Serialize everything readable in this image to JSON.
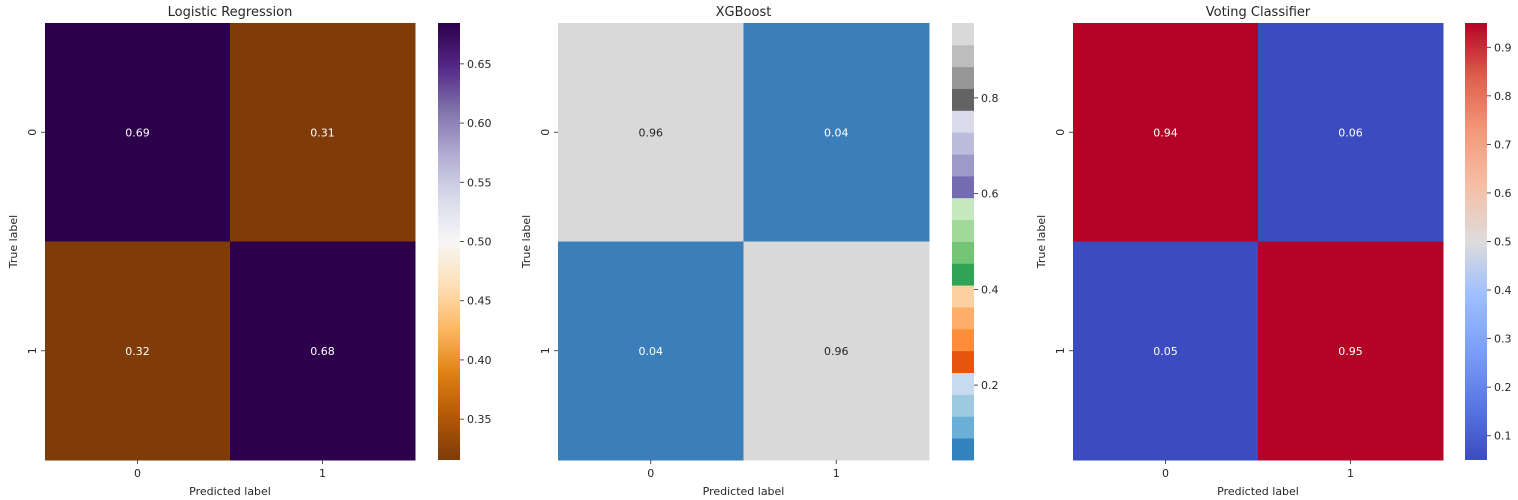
{
  "chart_data": [
    {
      "type": "heatmap",
      "title": "Logistic Regression",
      "xlabel": "Predicted label",
      "ylabel": "True label",
      "x_categories": [
        "0",
        "1"
      ],
      "y_categories": [
        "0",
        "1"
      ],
      "values": [
        [
          0.69,
          0.31
        ],
        [
          0.32,
          0.68
        ]
      ],
      "cell_labels": [
        [
          "0.69",
          "0.31"
        ],
        [
          "0.32",
          "0.68"
        ]
      ],
      "colormap": "PuOr",
      "colorbar": {
        "range": [
          0.3155,
          0.6845
        ],
        "ticks": [
          0.35,
          0.4,
          0.45,
          0.5,
          0.55,
          0.6,
          0.65
        ],
        "tick_labels": [
          "0.35",
          "0.40",
          "0.45",
          "0.50",
          "0.55",
          "0.60",
          "0.65"
        ]
      },
      "cell_colors": [
        [
          "#2d004b",
          "#7f3b08"
        ],
        [
          "#7f3b08",
          "#2d004b"
        ]
      ],
      "cell_text_colors": [
        [
          "#ffffff",
          "#ffffff"
        ],
        [
          "#ffffff",
          "#ffffff"
        ]
      ]
    },
    {
      "type": "heatmap",
      "title": "XGBoost",
      "xlabel": "Predicted label",
      "ylabel": "True label",
      "x_categories": [
        "0",
        "1"
      ],
      "y_categories": [
        "0",
        "1"
      ],
      "values": [
        [
          0.96,
          0.04
        ],
        [
          0.04,
          0.96
        ]
      ],
      "cell_labels": [
        [
          "0.96",
          "0.04"
        ],
        [
          "0.04",
          "0.96"
        ]
      ],
      "colormap": "tab20c",
      "colorbar": {
        "range": [
          0.0435,
          0.9565
        ],
        "ticks": [
          0.2,
          0.4,
          0.6,
          0.8
        ],
        "tick_labels": [
          "0.2",
          "0.4",
          "0.6",
          "0.8"
        ],
        "segments": [
          "#3182bd",
          "#6baed6",
          "#9ecae1",
          "#c6dbef",
          "#e6550d",
          "#fd8d3c",
          "#fdae6b",
          "#fdd0a2",
          "#31a354",
          "#74c476",
          "#a1d99b",
          "#c7e9c0",
          "#756bb1",
          "#9e9ac8",
          "#bcbddc",
          "#dadaeb",
          "#636363",
          "#969696",
          "#bdbdbd",
          "#d9d9d9"
        ]
      },
      "cell_colors": [
        [
          "#d9d9d9",
          "#3a7fba"
        ],
        [
          "#3a7fba",
          "#d9d9d9"
        ]
      ],
      "cell_text_colors": [
        [
          "#262626",
          "#ffffff"
        ],
        [
          "#ffffff",
          "#262626"
        ]
      ]
    },
    {
      "type": "heatmap",
      "title": "Voting Classifier",
      "xlabel": "Predicted label",
      "ylabel": "True label",
      "x_categories": [
        "0",
        "1"
      ],
      "y_categories": [
        "0",
        "1"
      ],
      "values": [
        [
          0.94,
          0.06
        ],
        [
          0.05,
          0.95
        ]
      ],
      "cell_labels": [
        [
          "0.94",
          "0.06"
        ],
        [
          "0.05",
          "0.95"
        ]
      ],
      "colormap": "coolwarm",
      "colorbar": {
        "range": [
          0.05,
          0.95
        ],
        "ticks": [
          0.1,
          0.2,
          0.3,
          0.4,
          0.5,
          0.6,
          0.7,
          0.8,
          0.9
        ],
        "tick_labels": [
          "0.1",
          "0.2",
          "0.3",
          "0.4",
          "0.5",
          "0.6",
          "0.7",
          "0.8",
          "0.9"
        ]
      },
      "cell_colors": [
        [
          "#b40426",
          "#3b4cc0"
        ],
        [
          "#3b4cc0",
          "#b40426"
        ]
      ],
      "cell_text_colors": [
        [
          "#ffffff",
          "#ffffff"
        ],
        [
          "#ffffff",
          "#ffffff"
        ]
      ]
    }
  ]
}
